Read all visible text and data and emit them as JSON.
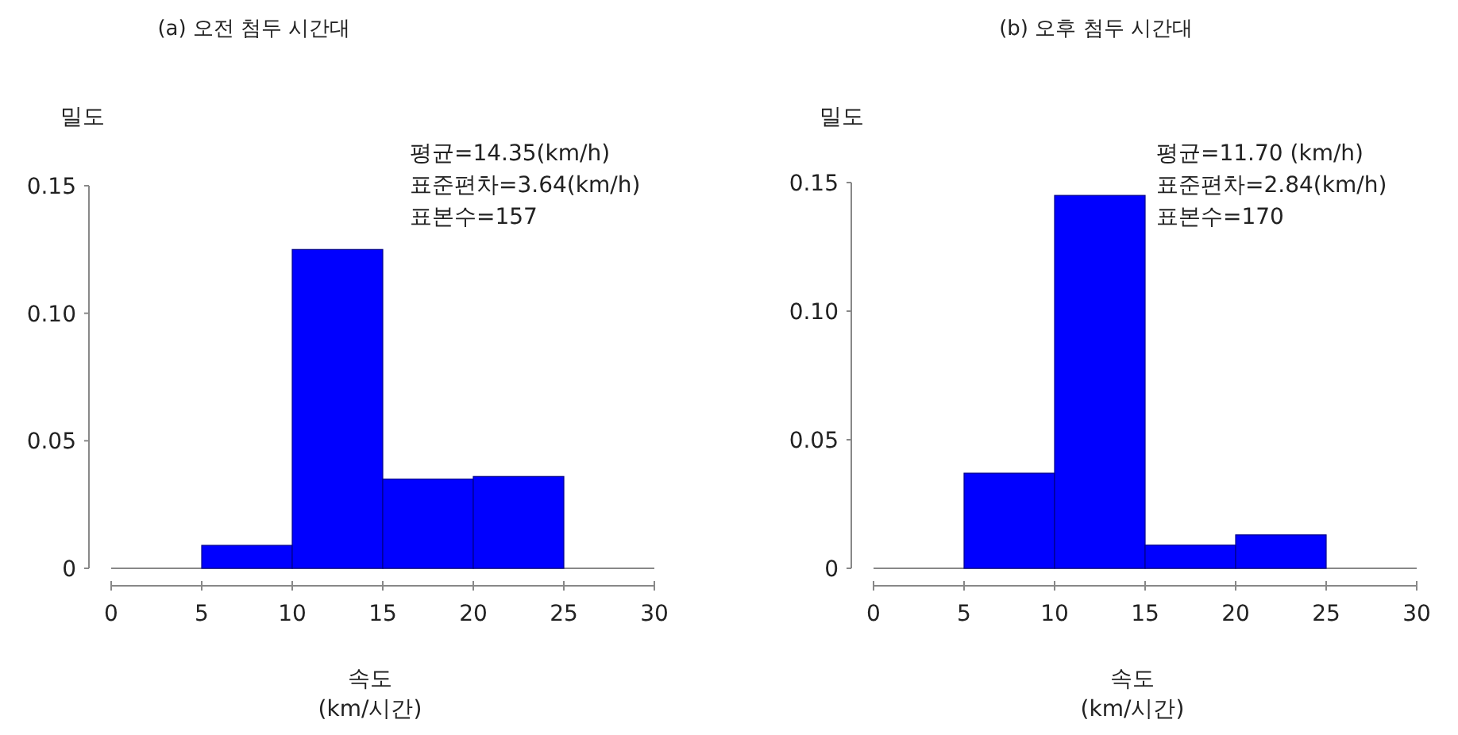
{
  "chart_data": [
    {
      "type": "histogram",
      "title": "(a)   오전 첨두 시간대",
      "xlabel": "속도\n(km/시간)",
      "ylabel": "밀도",
      "bins": [
        5,
        10,
        15,
        20,
        25
      ],
      "values": [
        0.009,
        0.125,
        0.035,
        0.036
      ],
      "color": "#0000ff",
      "xlim": [
        0,
        30
      ],
      "xticks": [
        0,
        5,
        10,
        15,
        20,
        25,
        30
      ],
      "ylim": [
        0,
        0.15
      ],
      "yticks": [
        {
          "value": 0,
          "label": "0"
        },
        {
          "value": 0.05,
          "label": "0.05"
        },
        {
          "value": 0.1,
          "label": "0.10"
        },
        {
          "value": 0.15,
          "label": "0.15"
        }
      ],
      "annotations": [
        "평균=14.35(km/h)",
        "표준편차=3.64(km/h)",
        "표본수=157"
      ]
    },
    {
      "type": "histogram",
      "title": "(b) 오후 첨두 시간대",
      "xlabel": "속도\n(km/시간)",
      "ylabel": "밀도",
      "bins": [
        5,
        10,
        15,
        20,
        25
      ],
      "values": [
        0.037,
        0.145,
        0.009,
        0.013
      ],
      "color": "#0000ff",
      "xlim": [
        0,
        30
      ],
      "xticks": [
        0,
        5,
        10,
        15,
        20,
        25,
        30
      ],
      "ylim": [
        0,
        0.15
      ],
      "yticks": [
        {
          "value": 0,
          "label": "0"
        },
        {
          "value": 0.05,
          "label": "0.05"
        },
        {
          "value": 0.1,
          "label": "0.10"
        },
        {
          "value": 0.15,
          "label": "0.15"
        }
      ],
      "annotations": [
        "평균=11.70 (km/h)",
        "표준편차=2.84(km/h)",
        "표본수=170"
      ]
    }
  ]
}
